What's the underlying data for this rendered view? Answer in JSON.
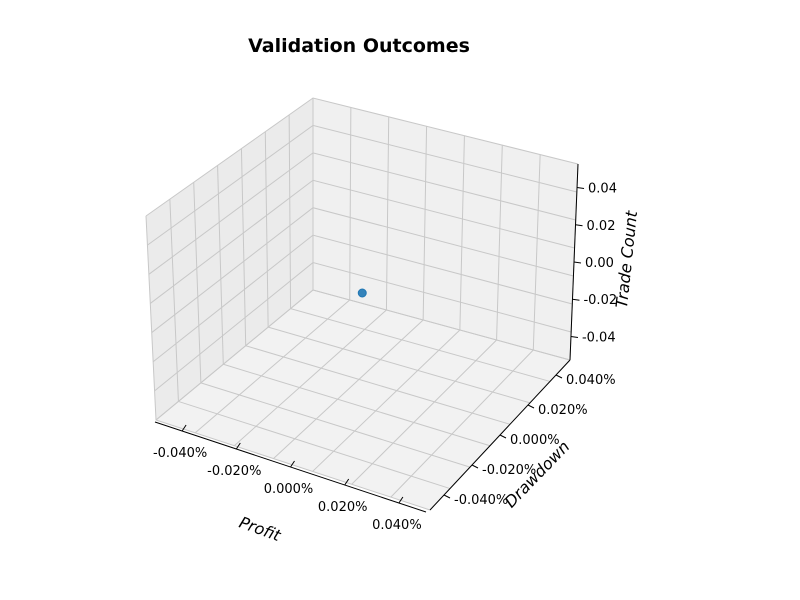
{
  "chart_data": {
    "type": "scatter",
    "projection": "3d",
    "title": "Validation Outcomes",
    "xlabel": "Profit",
    "ylabel": "Drawdown",
    "zlabel": "Trade Count",
    "x_ticks": [
      "-0.040%",
      "-0.020%",
      "0.000%",
      "0.020%",
      "0.040%"
    ],
    "y_ticks": [
      "-0.040%",
      "-0.020%",
      "0.000%",
      "0.020%",
      "0.040%"
    ],
    "z_ticks": [
      "0.04",
      "0.02",
      "0.00",
      "-0.02",
      "-0.04"
    ],
    "xlim": [
      -0.05,
      0.05
    ],
    "ylim": [
      -0.05,
      0.05
    ],
    "zlim": [
      -0.05,
      0.05
    ],
    "grid": true,
    "points": [
      {
        "x": 0,
        "y": 0,
        "z": 0
      }
    ],
    "colors": {
      "marker": "#1f77b4",
      "pane_left": "#ebebeb",
      "pane_back": "#f0f0f0",
      "pane_floor": "#f2f2f2",
      "grid": "#c8c8c8"
    }
  }
}
